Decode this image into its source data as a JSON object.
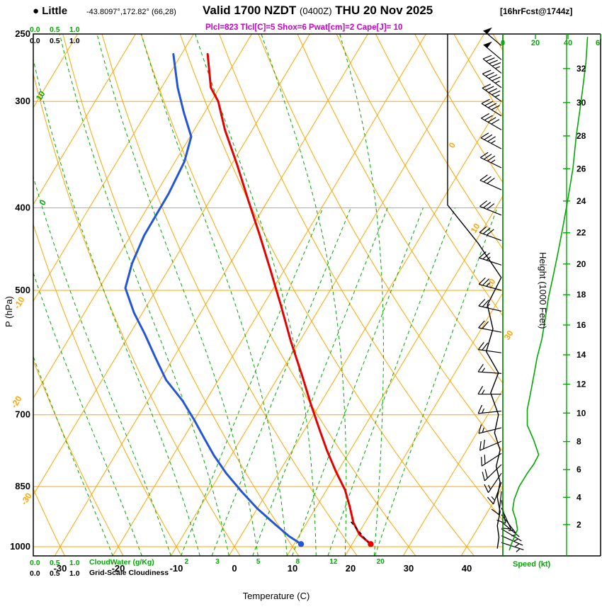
{
  "header": {
    "bullet": "●",
    "station": "Little",
    "coords": "-43.8097°,172.82° (66,28)",
    "valid_prefix": "Valid 1700 NZDT",
    "valid_z": "(0400Z)",
    "valid_date": "THU 20 Nov 2025",
    "fcst": "[16hrFcst@1744z]",
    "params": "Plcl=823 Tlcl[C]=5 Shox=6 Pwat[cm]=2 Cape[J]= 10"
  },
  "axes": {
    "pressure_label": "P (hPa)",
    "pressure_ticks": [
      250,
      300,
      400,
      500,
      700,
      850,
      1000
    ],
    "temp_label": "Temperature (C)",
    "temp_ticks": [
      -30,
      -20,
      -10,
      0,
      10,
      20,
      30,
      40
    ],
    "height_label": "Height (1000 Feet)",
    "height_ticks": [
      2,
      4,
      6,
      8,
      10,
      12,
      14,
      16,
      18,
      20,
      22,
      24,
      26,
      28,
      30,
      32
    ],
    "speed_label": "Speed (kt)",
    "speed_tick_labels": [
      "0",
      "20",
      "40",
      "6"
    ],
    "scale_values": [
      "0.0",
      "0.5",
      "1.0"
    ],
    "cloudwater_label": "CloudWater (g/Kg)",
    "cloudiness_label": "Grid-Scale Cloudiness",
    "isotherm_labels_right": [
      "0",
      "10",
      "20",
      "30"
    ],
    "isotherm_labels_left": [
      "-10",
      "-20",
      "-30"
    ],
    "moist_labels": [
      "10",
      "0"
    ]
  },
  "chart_data": {
    "type": "skewt-logp",
    "pressure_range": [
      250,
      1025
    ],
    "isotherm_step_c": 10,
    "mixing_ratio_lines_gkg": [
      2,
      3,
      5,
      8,
      12,
      20
    ],
    "moist_adiabats_c": [
      -20,
      -15,
      -10,
      -5,
      0,
      5,
      10,
      15,
      20,
      25
    ],
    "dry_adiabats_c": [
      -40,
      200,
      10
    ],
    "temperature_profile": [
      [
        264,
        -55.5
      ],
      [
        289,
        -51.5
      ],
      [
        300,
        -48.8
      ],
      [
        324,
        -44.7
      ],
      [
        356,
        -39.0
      ],
      [
        392,
        -33.4
      ],
      [
        431,
        -27.8
      ],
      [
        474,
        -22.3
      ],
      [
        521,
        -16.9
      ],
      [
        574,
        -11.5
      ],
      [
        631,
        -5.9
      ],
      [
        681,
        -1.5
      ],
      [
        728,
        2.5
      ],
      [
        771,
        6.0
      ],
      [
        816,
        9.7
      ],
      [
        858,
        13.2
      ],
      [
        897,
        15.7
      ],
      [
        937,
        18.0
      ],
      [
        968,
        20.3
      ],
      [
        993,
        23.2
      ]
    ],
    "dewpoint_profile": [
      [
        264,
        -61.4
      ],
      [
        289,
        -57.2
      ],
      [
        309,
        -53.6
      ],
      [
        330,
        -49.8
      ],
      [
        353,
        -48.4
      ],
      [
        385,
        -47.8
      ],
      [
        431,
        -47.7
      ],
      [
        465,
        -46.9
      ],
      [
        497,
        -45.5
      ],
      [
        531,
        -41.5
      ],
      [
        562,
        -37.5
      ],
      [
        601,
        -33.0
      ],
      [
        637,
        -29.0
      ],
      [
        674,
        -24.0
      ],
      [
        710,
        -20.0
      ],
      [
        745,
        -16.5
      ],
      [
        781,
        -13.0
      ],
      [
        820,
        -9.0
      ],
      [
        863,
        -4.3
      ],
      [
        902,
        0.0
      ],
      [
        944,
        5.0
      ],
      [
        972,
        8.3
      ],
      [
        993,
        11.2
      ]
    ],
    "parcel_path": [
      [
        935,
        17.5
      ],
      [
        993,
        23.0
      ]
    ],
    "surface_points": {
      "temperature": [
        993,
        23.2
      ],
      "dewpoint": [
        993,
        11.2
      ]
    },
    "wind_barbs": [
      [
        258,
        310,
        50
      ],
      [
        268,
        310,
        48
      ],
      [
        278,
        308,
        47
      ],
      [
        289,
        306,
        45
      ],
      [
        300,
        305,
        43
      ],
      [
        312,
        302,
        42
      ],
      [
        324,
        300,
        40
      ],
      [
        341,
        298,
        37
      ],
      [
        359,
        296,
        35
      ],
      [
        381,
        294,
        32
      ],
      [
        408,
        292,
        30
      ],
      [
        437,
        290,
        28
      ],
      [
        467,
        288,
        26
      ],
      [
        500,
        285,
        25
      ],
      [
        529,
        283,
        23
      ],
      [
        560,
        281,
        21
      ],
      [
        592,
        278,
        19
      ],
      [
        626,
        274,
        17
      ],
      [
        662,
        270,
        16
      ],
      [
        693,
        264,
        15
      ],
      [
        725,
        256,
        16
      ],
      [
        752,
        247,
        18
      ],
      [
        777,
        237,
        20
      ],
      [
        801,
        226,
        18
      ],
      [
        820,
        214,
        15
      ],
      [
        840,
        200,
        13
      ],
      [
        861,
        186,
        10
      ],
      [
        882,
        170,
        9
      ],
      [
        900,
        156,
        8
      ],
      [
        917,
        142,
        7
      ],
      [
        935,
        130,
        6
      ],
      [
        953,
        121,
        5
      ],
      [
        971,
        114,
        5
      ],
      [
        989,
        108,
        4
      ]
    ],
    "wind_speed_profile_kt": [
      [
        252,
        52
      ],
      [
        270,
        51
      ],
      [
        290,
        49
      ],
      [
        310,
        47
      ],
      [
        330,
        45
      ],
      [
        360,
        43
      ],
      [
        390,
        40
      ],
      [
        420,
        37
      ],
      [
        450,
        34
      ],
      [
        480,
        31
      ],
      [
        510,
        28
      ],
      [
        540,
        26
      ],
      [
        570,
        24
      ],
      [
        600,
        21
      ],
      [
        630,
        19
      ],
      [
        660,
        17
      ],
      [
        690,
        15
      ],
      [
        720,
        15
      ],
      [
        750,
        19
      ],
      [
        780,
        22
      ],
      [
        800,
        19
      ],
      [
        820,
        15
      ],
      [
        850,
        10
      ],
      [
        880,
        7
      ],
      [
        905,
        6
      ],
      [
        930,
        8
      ],
      [
        955,
        9
      ],
      [
        975,
        7
      ],
      [
        995,
        5
      ],
      [
        1010,
        4
      ]
    ],
    "cloudiness_profile": [
      [
        250,
        0
      ],
      [
        300,
        0
      ],
      [
        350,
        0
      ],
      [
        397,
        0
      ],
      [
        440,
        0.55
      ],
      [
        483,
        0.97
      ],
      [
        520,
        0.72
      ],
      [
        555,
        0.82
      ],
      [
        590,
        0.7
      ],
      [
        625,
        0.92
      ],
      [
        660,
        0.78
      ],
      [
        700,
        0.92
      ],
      [
        735,
        0.85
      ],
      [
        770,
        0.95
      ],
      [
        805,
        0.88
      ],
      [
        840,
        0.95
      ],
      [
        875,
        0.9
      ],
      [
        910,
        0.95
      ],
      [
        945,
        0.9
      ],
      [
        975,
        0.93
      ],
      [
        1005,
        0.9
      ]
    ],
    "colors": {
      "grid_orange": "#FFA500",
      "line_green": "#00A900",
      "temperature_red": "#E60000",
      "dewpoint_blue": "#2455D6",
      "params_magenta": "#CC00CC",
      "black": "#000000"
    }
  }
}
